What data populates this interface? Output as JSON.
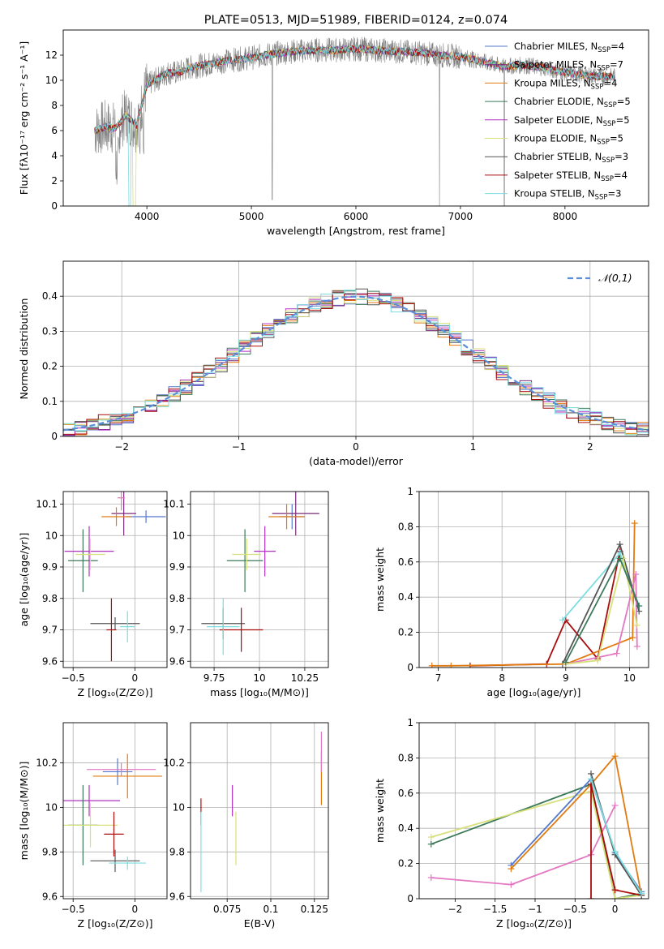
{
  "colors": {
    "chabrier_miles": "#5577cc",
    "salpeter_miles": "#7a2a7a",
    "kroupa_miles": "#e07b12",
    "chabrier_elodie": "#3d7a5a",
    "salpeter_elodie": "#b030c0",
    "kroupa_elodie": "#d8e07a",
    "chabrier_stelib": "#555555",
    "salpeter_stelib": "#aa0c0c",
    "kroupa_stelib": "#7ddde0",
    "spectrum_data": "#808080",
    "pink_accent": "#e377c2",
    "grid": "#b0b0b0"
  },
  "chart_data": [
    {
      "id": "spectrum",
      "type": "line",
      "title": "PLATE=0513, MJD=51989, FIBERID=0124, z=0.074",
      "xlabel": "wavelength [Angstrom, rest frame]",
      "ylabel": "Flux [fλ10⁻¹⁷ erg cm⁻² s⁻¹ A⁻¹]",
      "xlim": [
        3200,
        8800
      ],
      "ylim": [
        0,
        14
      ],
      "xticks": [
        4000,
        5000,
        6000,
        7000,
        8000
      ],
      "yticks": [
        0,
        2,
        4,
        6,
        8,
        10,
        12
      ],
      "grid": false,
      "legend_position": "right",
      "continuum": {
        "x": [
          3500,
          3600,
          3700,
          3800,
          3900,
          4000,
          4100,
          4200,
          4300,
          4400,
          4600,
          4800,
          5000,
          5200,
          5400,
          5600,
          5800,
          6000,
          6200,
          6400,
          6600,
          6800,
          7000,
          7200,
          7400,
          7600,
          7800,
          8000,
          8200,
          8400
        ],
        "y": [
          6.0,
          6.3,
          6.2,
          7.2,
          6.4,
          9.6,
          10.1,
          10.6,
          10.6,
          11.0,
          11.3,
          11.6,
          11.8,
          12.1,
          12.3,
          12.4,
          12.4,
          12.5,
          12.4,
          12.3,
          12.2,
          12.0,
          11.9,
          11.5,
          11.1,
          11.2,
          11.0,
          10.6,
          10.4,
          10.3
        ]
      },
      "series": [
        {
          "name": "Chabrier MILES, N",
          "sub": "SSP",
          "suffix": "=4",
          "color_key": "chabrier_miles"
        },
        {
          "name": "Salpeter MILES, N",
          "sub": "SSP",
          "suffix": "=7",
          "color_key": "salpeter_miles"
        },
        {
          "name": "Kroupa MILES, N",
          "sub": "SSP",
          "suffix": "=4",
          "color_key": "kroupa_miles"
        },
        {
          "name": "Chabrier ELODIE, N",
          "sub": "SSP",
          "suffix": "=5",
          "color_key": "chabrier_elodie"
        },
        {
          "name": "Salpeter ELODIE, N",
          "sub": "SSP",
          "suffix": "=5",
          "color_key": "salpeter_elodie"
        },
        {
          "name": "Kroupa ELODIE, N",
          "sub": "SSP",
          "suffix": "=5",
          "color_key": "kroupa_elodie"
        },
        {
          "name": "Chabrier STELIB, N",
          "sub": "SSP",
          "suffix": "=3",
          "color_key": "chabrier_stelib"
        },
        {
          "name": "Salpeter STELIB, N",
          "sub": "SSP",
          "suffix": "=4",
          "color_key": "salpeter_stelib"
        },
        {
          "name": "Kroupa STELIB, N",
          "sub": "SSP",
          "suffix": "=3",
          "color_key": "kroupa_stelib"
        }
      ]
    },
    {
      "id": "residuals",
      "type": "line",
      "xlabel": "(data-model)/error",
      "ylabel": "Normed distribution",
      "xlim": [
        -2.5,
        2.5
      ],
      "ylim": [
        0,
        0.5
      ],
      "xticks": [
        -2,
        -1,
        0,
        1,
        2
      ],
      "yticks": [
        0.0,
        0.1,
        0.2,
        0.3,
        0.4
      ],
      "grid": true,
      "legend_position": "upper right",
      "legend_label": "𝒩(0,1)",
      "gaussian": {
        "mean": 0,
        "sigma": 1
      }
    },
    {
      "id": "age_vs_z",
      "type": "scatter",
      "xlabel": "Z [log₁₀(Z/Z⊙)]",
      "ylabel": "age  [log₁₀(age/yr)]",
      "xlim": [
        -0.58,
        0.26
      ],
      "ylim": [
        9.58,
        10.14
      ],
      "xticks": [
        -0.5,
        0.0
      ],
      "yticks": [
        9.6,
        9.7,
        9.8,
        9.9,
        10.0,
        10.1
      ],
      "grid": true,
      "errorbars": [
        {
          "x": 0.09,
          "y": 10.06,
          "xerr": 0.16,
          "yerr": 0.02,
          "color_key": "chabrier_miles"
        },
        {
          "x": -0.09,
          "y": 10.07,
          "xerr": 0.1,
          "yerr": 0.07,
          "color_key": "salpeter_miles"
        },
        {
          "x": -0.15,
          "y": 10.06,
          "xerr": 0.12,
          "yerr": 0.03,
          "color_key": "kroupa_miles"
        },
        {
          "x": -0.42,
          "y": 9.92,
          "xerr": 0.12,
          "yerr": 0.1,
          "color_key": "chabrier_elodie"
        },
        {
          "x": -0.37,
          "y": 9.95,
          "xerr": 0.2,
          "yerr": 0.08,
          "color_key": "salpeter_elodie"
        },
        {
          "x": -0.36,
          "y": 9.94,
          "xerr": 0.12,
          "yerr": 0.05,
          "color_key": "kroupa_elodie"
        },
        {
          "x": -0.16,
          "y": 9.72,
          "xerr": 0.2,
          "yerr": 0.02,
          "color_key": "chabrier_stelib"
        },
        {
          "x": -0.19,
          "y": 9.7,
          "xerr": 0.04,
          "yerr": 0.1,
          "color_key": "salpeter_stelib"
        },
        {
          "x": -0.06,
          "y": 9.71,
          "xerr": 0.06,
          "yerr": 0.05,
          "color_key": "kroupa_stelib"
        },
        {
          "x": -0.11,
          "y": 10.12,
          "xerr": 0.03,
          "yerr": 0.04,
          "color_key": "pink_accent"
        }
      ]
    },
    {
      "id": "age_vs_mass",
      "type": "scatter",
      "xlabel": "mass [log₁₀(M/M⊙)]",
      "ylabel": "",
      "xlim": [
        9.62,
        10.38
      ],
      "ylim": [
        9.58,
        10.14
      ],
      "xticks": [
        9.75,
        10.0,
        10.25
      ],
      "yticks": [
        9.6,
        9.7,
        9.8,
        9.9,
        10.0,
        10.1
      ],
      "grid": true,
      "errorbars": [
        {
          "x": 10.18,
          "y": 10.06,
          "xerr": 0.07,
          "yerr": 0.04,
          "color_key": "chabrier_miles"
        },
        {
          "x": 10.2,
          "y": 10.07,
          "xerr": 0.13,
          "yerr": 0.07,
          "color_key": "salpeter_miles"
        },
        {
          "x": 10.15,
          "y": 10.06,
          "xerr": 0.1,
          "yerr": 0.04,
          "color_key": "kroupa_miles"
        },
        {
          "x": 9.92,
          "y": 9.92,
          "xerr": 0.1,
          "yerr": 0.1,
          "color_key": "chabrier_elodie"
        },
        {
          "x": 10.03,
          "y": 9.95,
          "xerr": 0.06,
          "yerr": 0.08,
          "color_key": "salpeter_elodie"
        },
        {
          "x": 9.93,
          "y": 9.94,
          "xerr": 0.08,
          "yerr": 0.05,
          "color_key": "kroupa_elodie"
        },
        {
          "x": 9.8,
          "y": 9.72,
          "xerr": 0.12,
          "yerr": 0.05,
          "color_key": "chabrier_stelib"
        },
        {
          "x": 9.9,
          "y": 9.7,
          "xerr": 0.12,
          "yerr": 0.07,
          "color_key": "salpeter_stelib"
        },
        {
          "x": 9.8,
          "y": 9.71,
          "xerr": 0.09,
          "yerr": 0.09,
          "color_key": "kroupa_stelib"
        }
      ]
    },
    {
      "id": "mw_vs_age",
      "type": "line",
      "xlabel": "age  [log₁₀(age/yr)]",
      "ylabel": "mass weight",
      "xlim": [
        6.7,
        10.3
      ],
      "ylim": [
        0,
        1.0
      ],
      "xticks": [
        7,
        8,
        9,
        10
      ],
      "yticks": [
        0.0,
        0.2,
        0.4,
        0.6,
        0.8,
        1.0
      ],
      "grid": true,
      "series": [
        {
          "color_key": "salpeter_stelib",
          "x": [
            7.5,
            8.7,
            9.0,
            9.5,
            9.85
          ],
          "y": [
            0.01,
            0.02,
            0.27,
            0.05,
            0.66
          ]
        },
        {
          "color_key": "kroupa_stelib",
          "x": [
            8.95,
            9.85,
            10.15
          ],
          "y": [
            0.27,
            0.65,
            0.35
          ]
        },
        {
          "color_key": "chabrier_stelib",
          "x": [
            8.95,
            9.85,
            10.15
          ],
          "y": [
            0.02,
            0.7,
            0.32
          ]
        },
        {
          "color_key": "kroupa_miles",
          "x": [
            6.9,
            7.2,
            9.0,
            10.05,
            10.08
          ],
          "y": [
            0.01,
            0.01,
            0.02,
            0.17,
            0.82
          ]
        },
        {
          "color_key": "pink_accent",
          "x": [
            9.0,
            9.8,
            10.1,
            10.12
          ],
          "y": [
            0.02,
            0.08,
            0.53,
            0.12
          ]
        },
        {
          "color_key": "kroupa_elodie",
          "x": [
            9.0,
            9.5,
            9.9,
            10.12
          ],
          "y": [
            0.02,
            0.04,
            0.62,
            0.24
          ]
        },
        {
          "color_key": "chabrier_elodie",
          "x": [
            9.0,
            9.85,
            10.15
          ],
          "y": [
            0.03,
            0.62,
            0.35
          ]
        }
      ]
    },
    {
      "id": "mass_vs_z",
      "type": "scatter",
      "xlabel": "Z [log₁₀(Z/Z⊙)]",
      "ylabel": "mass [log₁₀(M/M⊙)]",
      "xlim": [
        -0.58,
        0.26
      ],
      "ylim": [
        9.59,
        10.38
      ],
      "xticks": [
        -0.5,
        0.0
      ],
      "yticks": [
        9.6,
        9.8,
        10.0,
        10.2
      ],
      "grid": true,
      "errorbars": [
        {
          "x": -0.14,
          "y": 10.16,
          "xerr": 0.12,
          "yerr": 0.06,
          "color_key": "chabrier_miles"
        },
        {
          "x": -0.11,
          "y": 10.17,
          "xerr": 0.28,
          "yerr": 0.03,
          "color_key": "pink_accent"
        },
        {
          "x": -0.06,
          "y": 10.14,
          "xerr": 0.28,
          "yerr": 0.1,
          "color_key": "kroupa_miles"
        },
        {
          "x": -0.37,
          "y": 10.03,
          "xerr": 0.25,
          "yerr": 0.07,
          "color_key": "salpeter_elodie"
        },
        {
          "x": -0.42,
          "y": 9.92,
          "xerr": 0.12,
          "yerr": 0.18,
          "color_key": "chabrier_elodie"
        },
        {
          "x": -0.36,
          "y": 9.92,
          "xerr": 0.22,
          "yerr": 0.1,
          "color_key": "kroupa_elodie"
        },
        {
          "x": -0.17,
          "y": 9.88,
          "xerr": 0.08,
          "yerr": 0.1,
          "color_key": "salpeter_stelib"
        },
        {
          "x": -0.16,
          "y": 9.76,
          "xerr": 0.2,
          "yerr": 0.05,
          "color_key": "chabrier_stelib"
        },
        {
          "x": -0.06,
          "y": 9.75,
          "xerr": 0.15,
          "yerr": 0.03,
          "color_key": "kroupa_stelib"
        }
      ]
    },
    {
      "id": "mass_vs_ebv",
      "type": "scatter",
      "xlabel": "E(B-V)",
      "ylabel": "",
      "xlim": [
        0.054,
        0.133
      ],
      "ylim": [
        9.59,
        10.38
      ],
      "xticks": [
        0.075,
        0.1,
        0.125
      ],
      "yticks": [
        9.6,
        9.8,
        10.0,
        10.2
      ],
      "grid": true,
      "errorbars": [
        {
          "x": 0.06,
          "y": 9.98,
          "xerr": 0,
          "yerr": 0.06,
          "color_key": "salpeter_stelib"
        },
        {
          "x": 0.06,
          "y": 9.8,
          "xerr": 0,
          "yerr": 0.18,
          "color_key": "kroupa_stelib"
        },
        {
          "x": 0.078,
          "y": 10.03,
          "xerr": 0,
          "yerr": 0.07,
          "color_key": "salpeter_elodie"
        },
        {
          "x": 0.08,
          "y": 9.86,
          "xerr": 0,
          "yerr": 0.12,
          "color_key": "kroupa_elodie"
        },
        {
          "x": 0.129,
          "y": 10.13,
          "xerr": 0,
          "yerr": 0.12,
          "color_key": "kroupa_miles"
        },
        {
          "x": 0.129,
          "y": 10.25,
          "xerr": 0,
          "yerr": 0.09,
          "color_key": "pink_accent"
        }
      ]
    },
    {
      "id": "mw_vs_z",
      "type": "line",
      "xlabel": "Z [log₁₀(Z/Z⊙)]",
      "ylabel": "mass weight",
      "xlim": [
        -2.45,
        0.42
      ],
      "ylim": [
        0,
        1.0
      ],
      "xticks": [
        -2.0,
        -1.5,
        -1.0,
        -0.5,
        0.0
      ],
      "yticks": [
        0.0,
        0.2,
        0.4,
        0.6,
        0.8,
        1.0
      ],
      "grid": true,
      "series": [
        {
          "color_key": "chabrier_elodie",
          "x": [
            -2.3,
            -0.3,
            0.0,
            0.33
          ],
          "y": [
            0.31,
            0.65,
            0.0,
            0.03
          ]
        },
        {
          "color_key": "kroupa_elodie",
          "x": [
            -2.3,
            -0.3,
            0.0,
            0.33
          ],
          "y": [
            0.35,
            0.61,
            0.0,
            0.02
          ]
        },
        {
          "color_key": "chabrier_miles",
          "x": [
            -1.3,
            -0.3,
            0.0,
            0.33
          ],
          "y": [
            0.19,
            0.68,
            0.26,
            0.04
          ]
        },
        {
          "color_key": "kroupa_miles",
          "x": [
            -1.3,
            -0.3,
            0.0,
            0.33
          ],
          "y": [
            0.17,
            0.65,
            0.81,
            0.02
          ]
        },
        {
          "color_key": "pink_accent",
          "x": [
            -2.3,
            -1.3,
            -0.3,
            0.0
          ],
          "y": [
            0.12,
            0.08,
            0.25,
            0.53
          ]
        },
        {
          "color_key": "salpeter_stelib",
          "x": [
            -0.3,
            -0.3,
            0.0,
            0.33
          ],
          "y": [
            0.0,
            0.65,
            0.05,
            0.02
          ]
        },
        {
          "color_key": "chabrier_stelib",
          "x": [
            -0.3,
            0.0,
            0.33
          ],
          "y": [
            0.71,
            0.25,
            0.02
          ]
        },
        {
          "color_key": "kroupa_stelib",
          "x": [
            -0.3,
            0.0,
            0.33
          ],
          "y": [
            0.68,
            0.27,
            0.03
          ]
        }
      ]
    }
  ]
}
